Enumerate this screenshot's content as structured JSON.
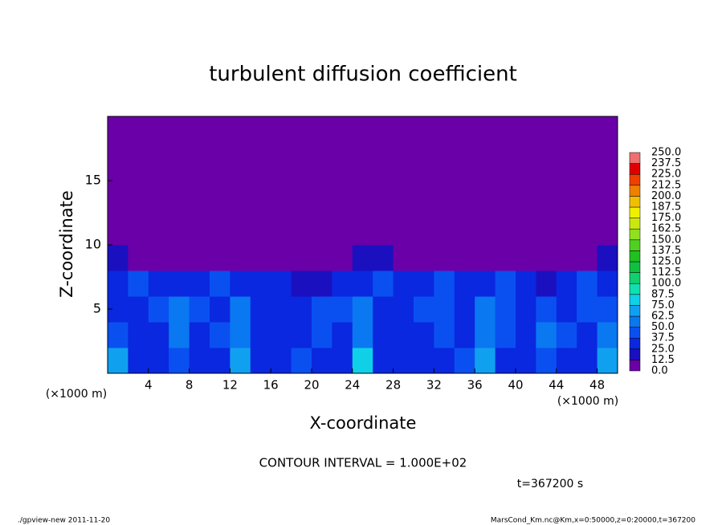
{
  "chart_data": {
    "type": "heatmap",
    "title": "turbulent diffusion coefficient",
    "xlabel": "X-coordinate",
    "ylabel": "Z-coordinate",
    "x_unit": "(×1000 m)",
    "x_unit_right": "(×1000 m)",
    "annotation": "CONTOUR INTERVAL = 1.000E+02",
    "time_label": "t=367200 s",
    "footer_left": "./gpview-new  2011-11-20",
    "footer_right": "MarsCond_Km.nc@Km,x=0:50000,z=0:20000,t=367200",
    "xlim": [
      0,
      50
    ],
    "ylim": [
      0,
      20
    ],
    "xticks": [
      4,
      8,
      12,
      16,
      20,
      24,
      28,
      32,
      36,
      40,
      44,
      48
    ],
    "yticks": [
      5,
      10,
      15
    ],
    "x": [
      1,
      3,
      5,
      7,
      9,
      11,
      13,
      15,
      17,
      19,
      21,
      23,
      25,
      27,
      29,
      31,
      33,
      35,
      37,
      39,
      41,
      43,
      45,
      47,
      49
    ],
    "y": [
      1,
      3,
      5,
      7,
      9,
      11,
      13,
      15,
      17,
      19
    ],
    "z": [
      [
        70,
        35,
        30,
        40,
        30,
        35,
        70,
        30,
        35,
        40,
        30,
        30,
        80,
        35,
        30,
        30,
        30,
        40,
        70,
        35,
        30,
        40,
        35,
        30,
        70
      ],
      [
        40,
        30,
        35,
        50,
        30,
        40,
        60,
        30,
        35,
        30,
        40,
        35,
        60,
        30,
        30,
        30,
        40,
        35,
        60,
        40,
        35,
        50,
        40,
        35,
        55
      ],
      [
        35,
        30,
        40,
        50,
        45,
        30,
        50,
        35,
        30,
        30,
        40,
        40,
        50,
        30,
        35,
        40,
        45,
        30,
        50,
        40,
        30,
        45,
        30,
        40,
        45
      ],
      [
        30,
        40,
        30,
        35,
        30,
        40,
        35,
        30,
        25,
        20,
        20,
        30,
        35,
        40,
        30,
        35,
        40,
        35,
        30,
        40,
        30,
        20,
        35,
        40,
        35
      ],
      [
        15,
        10,
        5,
        5,
        5,
        10,
        10,
        5,
        0,
        0,
        0,
        5,
        15,
        15,
        10,
        5,
        10,
        10,
        5,
        5,
        0,
        0,
        5,
        10,
        15
      ],
      [
        0,
        0,
        0,
        0,
        0,
        0,
        0,
        0,
        0,
        0,
        0,
        0,
        0,
        0,
        0,
        0,
        0,
        0,
        0,
        0,
        0,
        0,
        0,
        0,
        0
      ],
      [
        0,
        0,
        0,
        0,
        0,
        0,
        0,
        0,
        0,
        0,
        0,
        0,
        0,
        0,
        0,
        0,
        0,
        0,
        0,
        0,
        0,
        0,
        0,
        0,
        0
      ],
      [
        0,
        0,
        0,
        0,
        0,
        0,
        0,
        0,
        0,
        0,
        0,
        0,
        0,
        0,
        0,
        0,
        0,
        0,
        0,
        0,
        0,
        0,
        0,
        0,
        0
      ],
      [
        0,
        0,
        0,
        0,
        0,
        0,
        0,
        0,
        0,
        0,
        0,
        0,
        0,
        0,
        0,
        0,
        0,
        0,
        0,
        0,
        0,
        0,
        0,
        0,
        0
      ],
      [
        0,
        0,
        0,
        0,
        0,
        0,
        0,
        0,
        0,
        0,
        0,
        0,
        0,
        0,
        0,
        0,
        0,
        0,
        0,
        0,
        0,
        0,
        0,
        0,
        0
      ]
    ],
    "clim": [
      0,
      250
    ],
    "colors": [
      "#6a00a8",
      "#1a10c0",
      "#0a28e0",
      "#0a50f0",
      "#0a78f0",
      "#10a0f0",
      "#10d0e8",
      "#10e0b0",
      "#10d070",
      "#10c040",
      "#20c020",
      "#50d020",
      "#90e020",
      "#c8e810",
      "#f0f000",
      "#f0c000",
      "#f08000",
      "#f04000",
      "#e00000",
      "#f07070"
    ],
    "cticks": [
      {
        "value": 0,
        "label": "0.0"
      },
      {
        "value": 12.5,
        "label": "12.5"
      },
      {
        "value": 25,
        "label": "25.0"
      },
      {
        "value": 37.5,
        "label": "37.5"
      },
      {
        "value": 50,
        "label": "50.0"
      },
      {
        "value": 62.5,
        "label": "62.5"
      },
      {
        "value": 75,
        "label": "75.0"
      },
      {
        "value": 87.5,
        "label": "87.5"
      },
      {
        "value": 100,
        "label": "100.0"
      },
      {
        "value": 112.5,
        "label": "112.5"
      },
      {
        "value": 125,
        "label": "125.0"
      },
      {
        "value": 137.5,
        "label": "137.5"
      },
      {
        "value": 150,
        "label": "150.0"
      },
      {
        "value": 162.5,
        "label": "162.5"
      },
      {
        "value": 175,
        "label": "175.0"
      },
      {
        "value": 187.5,
        "label": "187.5"
      },
      {
        "value": 200,
        "label": "200.0"
      },
      {
        "value": 212.5,
        "label": "212.5"
      },
      {
        "value": 225,
        "label": "225.0"
      },
      {
        "value": 237.5,
        "label": "237.5"
      },
      {
        "value": 250,
        "label": "250.0"
      }
    ]
  }
}
